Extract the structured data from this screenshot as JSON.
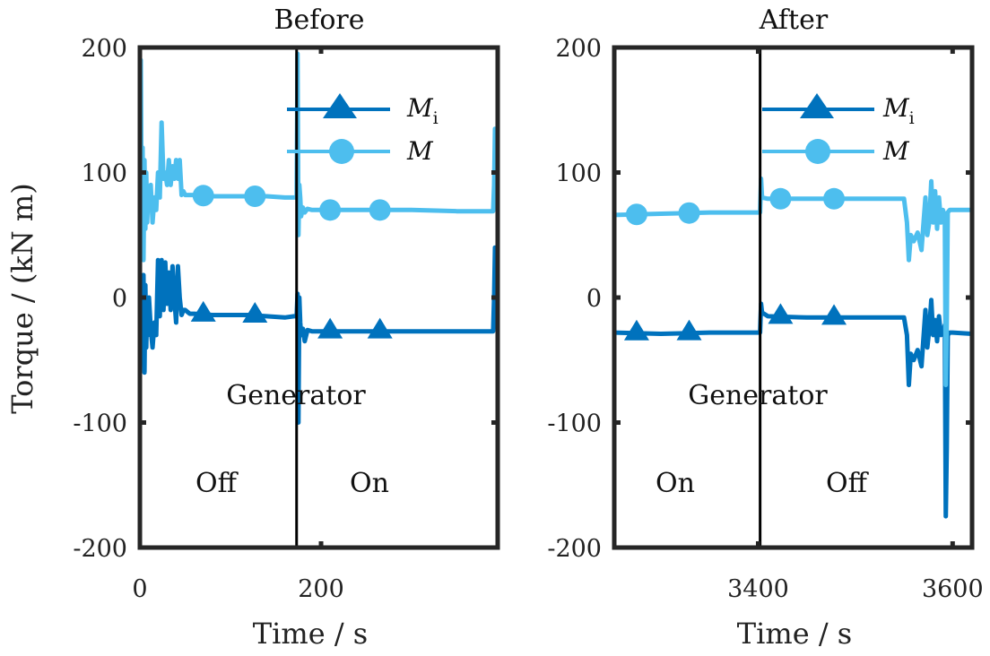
{
  "chart_data": [
    {
      "type": "line",
      "title": "Before",
      "xlabel": "Time / s",
      "ylabel": "Torque / (kN m)",
      "xlim": [
        0,
        395
      ],
      "ylim": [
        -200,
        200
      ],
      "xticks": [
        0,
        200
      ],
      "xtick_labels": [
        "0",
        "200"
      ],
      "yticks": [
        -200,
        -100,
        0,
        100,
        200
      ],
      "ytick_labels": [
        "-200",
        "-100",
        "0",
        "100",
        "200"
      ],
      "grid": false,
      "legend_position": "top-right",
      "switch_time": 173,
      "annotations": {
        "header": "Generator",
        "left_state": "Off",
        "right_state": "On"
      },
      "series": [
        {
          "name": "M_i",
          "label_main": "M",
          "label_sub": "i",
          "marker": "triangle",
          "color": "#0072BD",
          "marker_x": [
            70,
            127,
            210,
            265
          ],
          "x": [
            0,
            1,
            2,
            3,
            4,
            5,
            6,
            7,
            8,
            9,
            10,
            12,
            14,
            16,
            18,
            20,
            22,
            24,
            26,
            28,
            30,
            32,
            34,
            36,
            38,
            40,
            42,
            44,
            46,
            48,
            50,
            55,
            60,
            80,
            100,
            120,
            140,
            160,
            170,
            171,
            172,
            173,
            174,
            175,
            176,
            177,
            178,
            180,
            182,
            185,
            190,
            200,
            250,
            300,
            350,
            390,
            391,
            392,
            393,
            394,
            395
          ],
          "y": [
            -25,
            10,
            -20,
            -45,
            18,
            -60,
            10,
            -40,
            -5,
            -30,
            0,
            -25,
            -40,
            -20,
            -30,
            30,
            -15,
            30,
            -10,
            28,
            -5,
            20,
            -10,
            25,
            0,
            -20,
            25,
            0,
            -14,
            -10,
            -10,
            -13,
            -13,
            -14,
            -14,
            -14,
            -15,
            -16,
            -15,
            -15,
            -15,
            -15,
            3,
            -100,
            0,
            -20,
            -30,
            -25,
            -35,
            -26,
            -27,
            -27,
            -27,
            -27,
            -27,
            -27,
            0,
            40,
            15,
            -5,
            10
          ]
        },
        {
          "name": "M",
          "label_main": "M",
          "label_sub": "",
          "marker": "circle",
          "color": "#4DBEEE",
          "marker_x": [
            70,
            127,
            210,
            265
          ],
          "x": [
            0,
            1,
            2,
            3,
            4,
            5,
            6,
            7,
            8,
            9,
            10,
            12,
            14,
            16,
            18,
            20,
            22,
            24,
            26,
            28,
            30,
            32,
            34,
            36,
            38,
            40,
            42,
            44,
            46,
            48,
            50,
            55,
            60,
            80,
            100,
            120,
            140,
            160,
            170,
            171,
            172,
            173,
            174,
            175,
            176,
            177,
            178,
            180,
            182,
            185,
            190,
            200,
            250,
            300,
            350,
            390,
            391,
            392,
            393,
            394,
            395
          ],
          "y": [
            70,
            190,
            60,
            120,
            30,
            110,
            55,
            100,
            60,
            80,
            70,
            90,
            60,
            80,
            70,
            100,
            80,
            140,
            95,
            100,
            90,
            110,
            90,
            105,
            95,
            110,
            95,
            110,
            82,
            85,
            82,
            82,
            82,
            81,
            81,
            81,
            81,
            80,
            80,
            80,
            80,
            80,
            195,
            50,
            90,
            80,
            65,
            72,
            68,
            71,
            70,
            70,
            70,
            70,
            69,
            69,
            90,
            135,
            100,
            110,
            105
          ]
        }
      ]
    },
    {
      "type": "line",
      "title": "After",
      "xlabel": "Time / s",
      "ylabel": "",
      "xlim": [
        3252,
        3620
      ],
      "ylim": [
        -200,
        200
      ],
      "xticks": [
        3400,
        3600
      ],
      "xtick_labels": [
        "3400",
        "3600"
      ],
      "yticks": [
        -200,
        -100,
        0,
        100,
        200
      ],
      "ytick_labels": [
        "-200",
        "-100",
        "0",
        "100",
        "200"
      ],
      "grid": false,
      "legend_position": "top-right",
      "switch_time": 3402,
      "annotations": {
        "header": "Generator",
        "left_state": "On",
        "right_state": "Off"
      },
      "series": [
        {
          "name": "M_i",
          "label_main": "M",
          "label_sub": "i",
          "marker": "triangle",
          "color": "#0072BD",
          "marker_x": [
            3275,
            3329,
            3423,
            3478
          ],
          "x": [
            3252,
            3300,
            3350,
            3400,
            3402,
            3403,
            3404,
            3410,
            3450,
            3500,
            3550,
            3553,
            3555,
            3557,
            3560,
            3564,
            3568,
            3572,
            3574,
            3576,
            3578,
            3580,
            3582,
            3584,
            3586,
            3588,
            3590,
            3592,
            3593,
            3594,
            3595,
            3597,
            3600,
            3620
          ],
          "y": [
            -28,
            -29,
            -28,
            -28,
            -28,
            -5,
            -12,
            -15,
            -16,
            -16,
            -16,
            -30,
            -70,
            -45,
            -50,
            -42,
            -55,
            -10,
            -40,
            -25,
            -2,
            -30,
            -18,
            -35,
            -15,
            -30,
            -28,
            -22,
            -175,
            -120,
            -30,
            -28,
            -28,
            -29
          ]
        },
        {
          "name": "M",
          "label_main": "M",
          "label_sub": "",
          "marker": "circle",
          "color": "#4DBEEE",
          "marker_x": [
            3275,
            3329,
            3423,
            3478
          ],
          "x": [
            3252,
            3300,
            3350,
            3400,
            3402,
            3403,
            3404,
            3410,
            3450,
            3500,
            3550,
            3553,
            3555,
            3557,
            3560,
            3564,
            3568,
            3572,
            3574,
            3576,
            3578,
            3580,
            3582,
            3584,
            3586,
            3588,
            3590,
            3592,
            3593,
            3594,
            3595,
            3597,
            3600,
            3620
          ],
          "y": [
            66,
            67,
            68,
            68,
            68,
            95,
            80,
            79,
            79,
            79,
            79,
            60,
            30,
            50,
            45,
            52,
            38,
            80,
            50,
            60,
            93,
            60,
            85,
            55,
            80,
            60,
            70,
            65,
            -70,
            -20,
            68,
            70,
            70,
            70
          ]
        }
      ]
    }
  ]
}
